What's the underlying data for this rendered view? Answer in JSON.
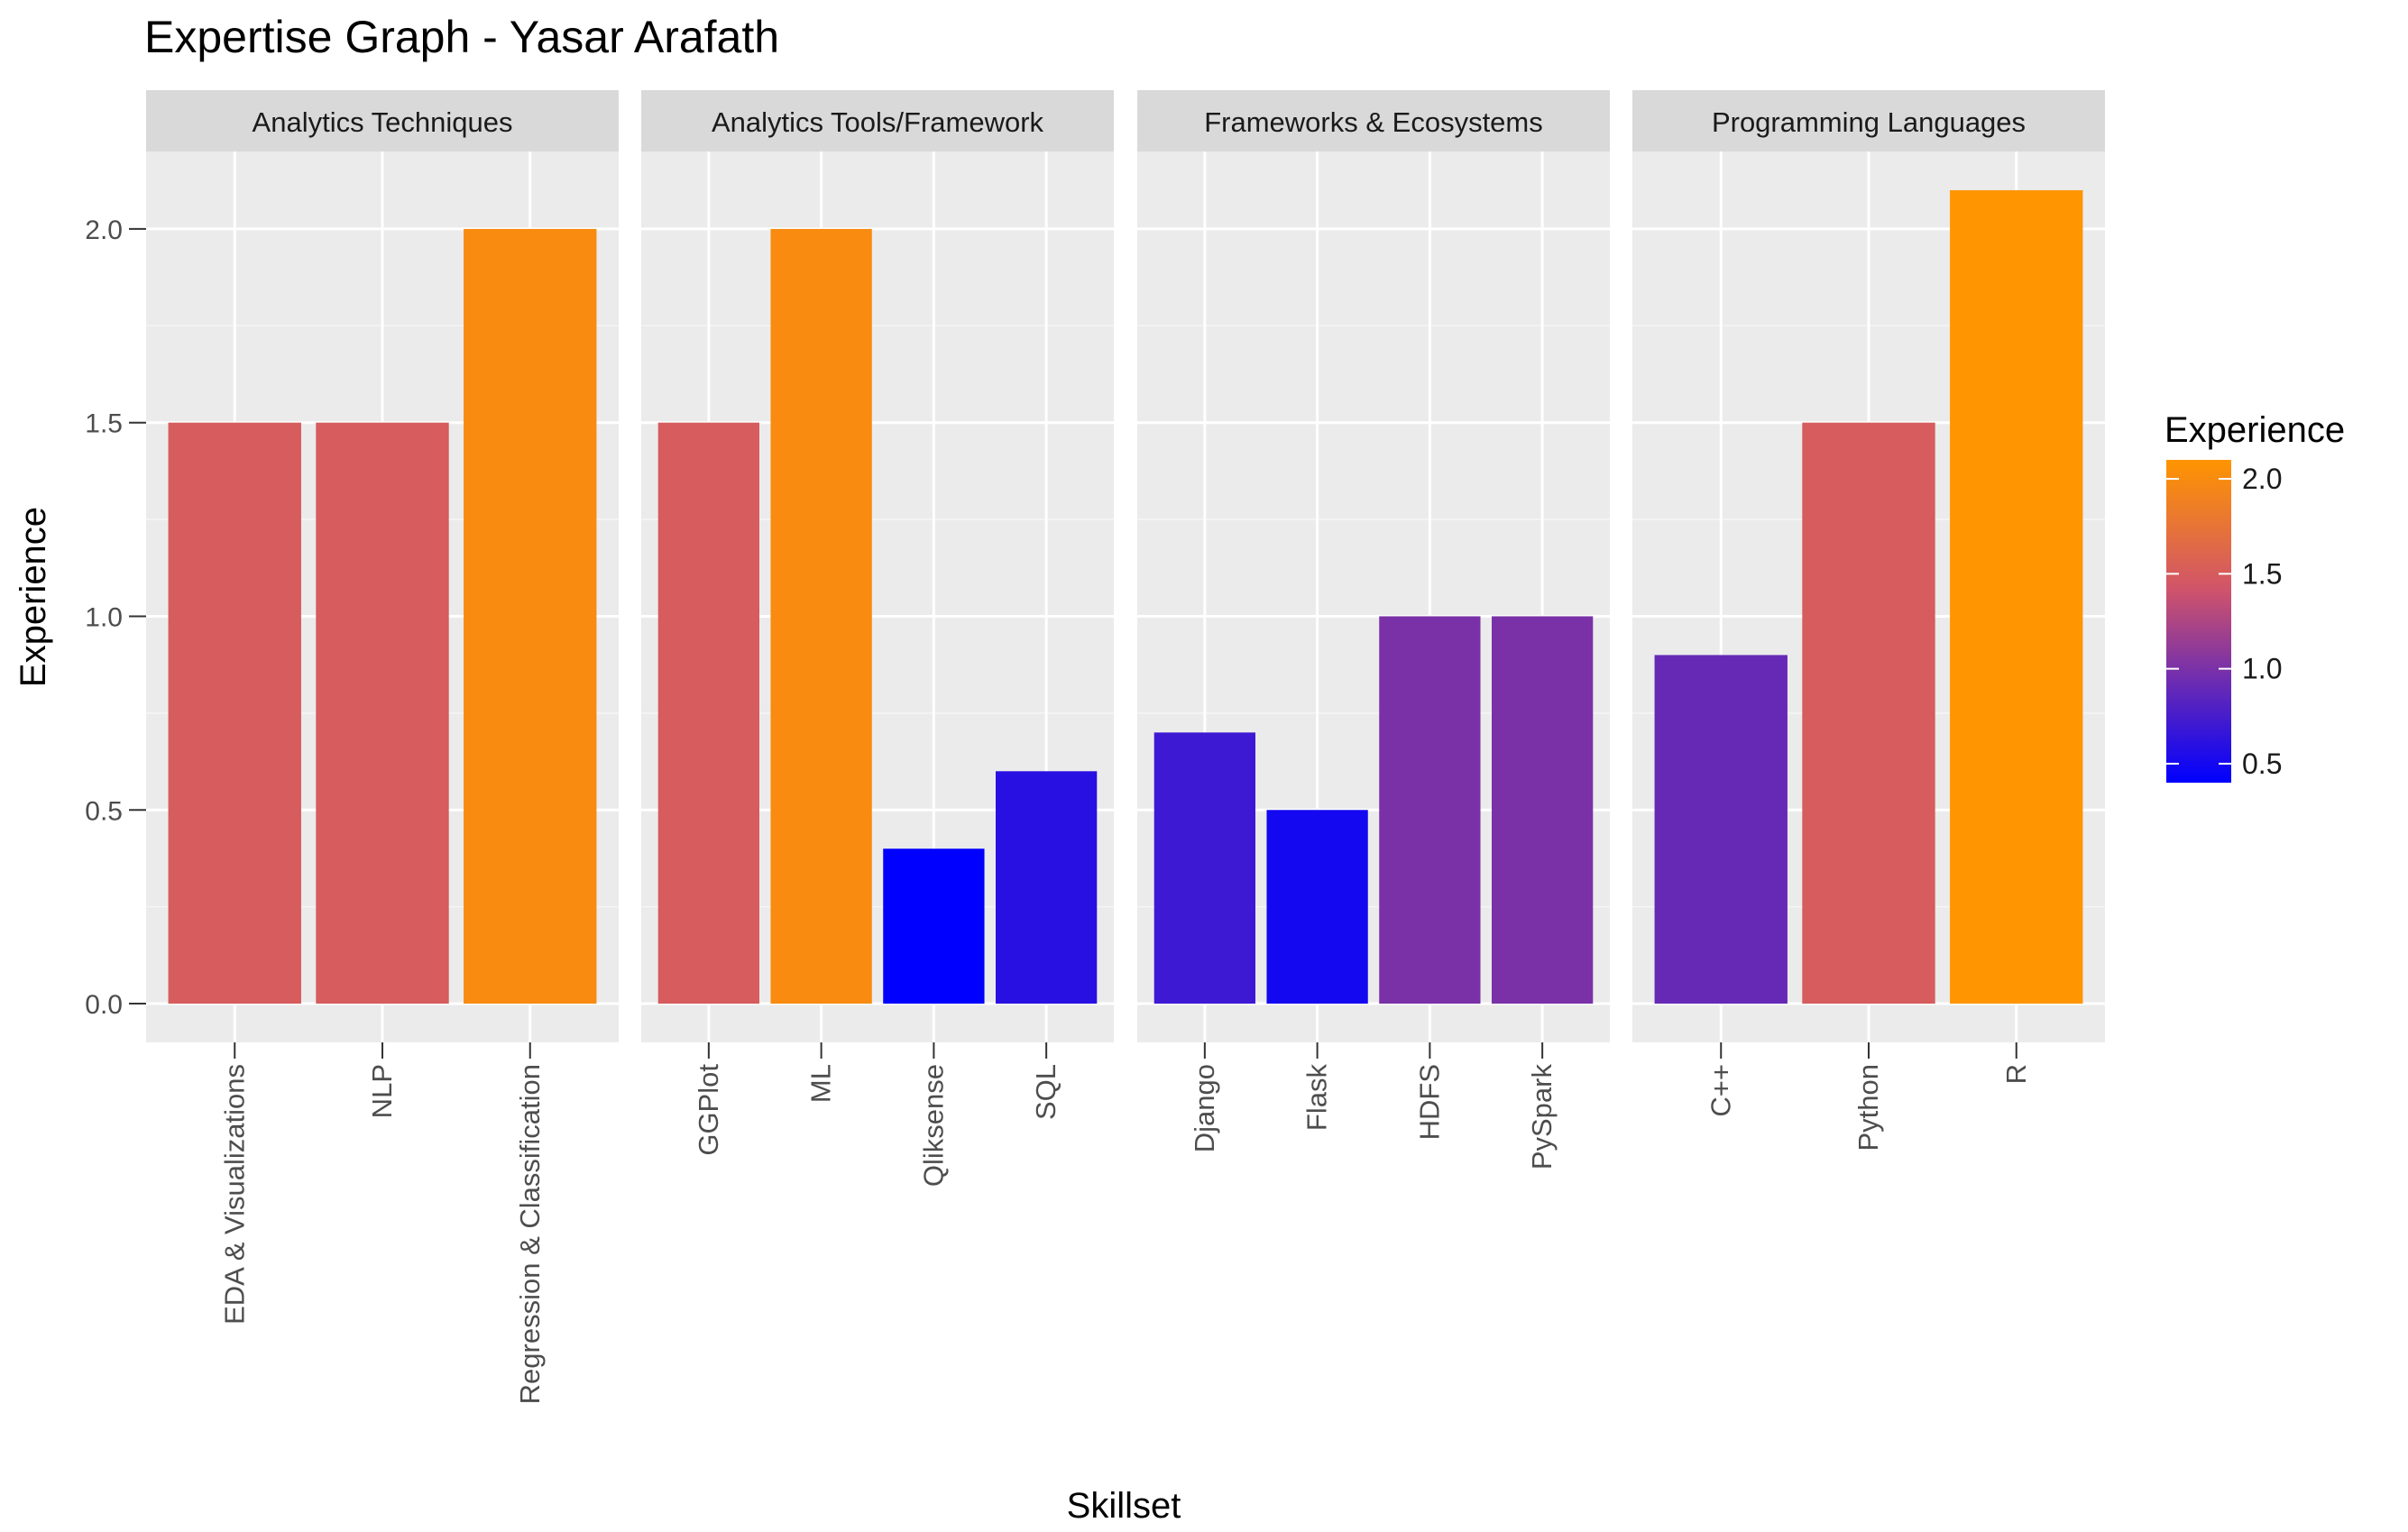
{
  "chart_data": {
    "type": "bar",
    "title": "Expertise Graph - Yasar Arafath",
    "xlabel": "Skillset",
    "ylabel": "Experience",
    "ylim": [
      -0.1,
      2.2
    ],
    "yticks": [
      "0.0",
      "0.5",
      "1.0",
      "1.5",
      "2.0"
    ],
    "ytick_values": [
      0,
      0.5,
      1,
      1.5,
      2
    ],
    "grid": true,
    "facets": [
      {
        "name": "Analytics Techniques",
        "categories": [
          "EDA & Visualizations",
          "NLP",
          "Regression & Classification"
        ],
        "values": [
          1.5,
          1.5,
          2.0
        ]
      },
      {
        "name": "Analytics Tools/Framework",
        "categories": [
          "GGPlot",
          "ML",
          "Qliksense",
          "SQL"
        ],
        "values": [
          1.5,
          2.0,
          0.4,
          0.6
        ]
      },
      {
        "name": "Frameworks & Ecosystems",
        "categories": [
          "Django",
          "Flask",
          "HDFS",
          "PySpark"
        ],
        "values": [
          0.7,
          0.5,
          1.0,
          1.0
        ]
      },
      {
        "name": "Programming Languages",
        "categories": [
          "C++",
          "Python",
          "R"
        ],
        "values": [
          0.9,
          1.5,
          2.1
        ]
      }
    ],
    "legend": {
      "title": "Experience",
      "position": "right",
      "ticks": [
        "0.5",
        "1.0",
        "1.5",
        "2.0"
      ],
      "tick_values": [
        0.5,
        1.0,
        1.5,
        2.0
      ],
      "range": [
        0.4,
        2.1
      ],
      "low_color": "#0000ff",
      "mid_color": "#d0546a",
      "high_color": "#ff9500"
    }
  }
}
